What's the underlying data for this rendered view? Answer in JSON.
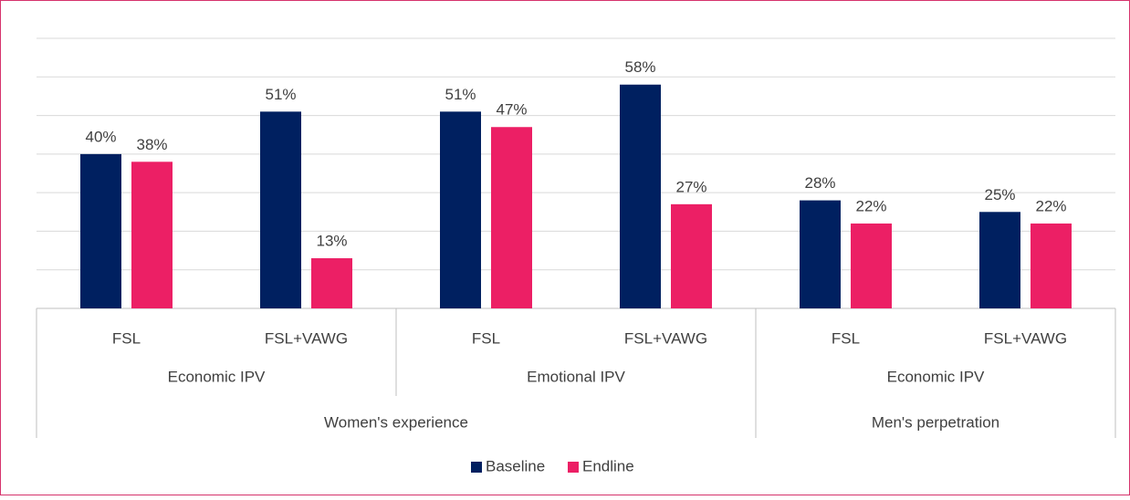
{
  "chart_data": {
    "type": "bar",
    "category_groups": [
      {
        "name": "Women's experience",
        "groups": [
          {
            "name": "Economic IPV",
            "categories": [
              "FSL",
              "FSL+VAWG"
            ]
          },
          {
            "name": "Emotional IPV",
            "categories": [
              "FSL",
              "FSL+VAWG"
            ]
          }
        ]
      },
      {
        "name": "Men's perpetration",
        "groups": [
          {
            "name": "Economic IPV",
            "categories": [
              "FSL",
              "FSL+VAWG"
            ]
          }
        ]
      }
    ],
    "series": [
      {
        "name": "Baseline",
        "color": "#002060",
        "values": [
          40,
          51,
          51,
          58,
          28,
          25
        ],
        "value_labels": [
          "40%",
          "51%",
          "51%",
          "58%",
          "28%",
          "25%"
        ]
      },
      {
        "name": "Endline",
        "color": "#EC1F65",
        "values": [
          38,
          13,
          47,
          27,
          22,
          22
        ],
        "value_labels": [
          "38%",
          "13%",
          "47%",
          "27%",
          "22%",
          "22%"
        ]
      }
    ],
    "ylim": [
      0,
      70
    ],
    "yticks": [
      0,
      10,
      20,
      30,
      40,
      50,
      60,
      70
    ],
    "grid": true,
    "legend": "bottom"
  }
}
